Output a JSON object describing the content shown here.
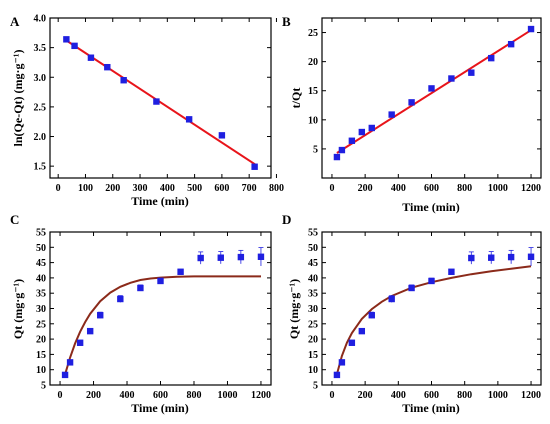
{
  "colors": {
    "marker": "#1f1fe0",
    "linear_fit": "#e8141a",
    "curve_fit": "#8b2a1a",
    "axis": "#000000"
  },
  "chart_data": [
    {
      "panel_label": "A",
      "type": "scatter",
      "xlabel": "Time (min)",
      "ylabel": "ln(Qe-Qt) (mg·g⁻¹)",
      "xlim": [
        -30,
        780
      ],
      "ylim": [
        1.3,
        4.0
      ],
      "xticks": [
        "0",
        "100",
        "200",
        "300",
        "400",
        "500",
        "600",
        "700",
        "800"
      ],
      "xtick_values": [
        0,
        100,
        200,
        300,
        400,
        500,
        600,
        700,
        800
      ],
      "yticks": [
        "1.5",
        "2.0",
        "2.5",
        "3.0",
        "3.5",
        "4.0"
      ],
      "ytick_values": [
        1.5,
        2.0,
        2.5,
        3.0,
        3.5,
        4.0
      ],
      "series": [
        {
          "type": "scatter",
          "x": [
            30,
            60,
            120,
            180,
            240,
            360,
            480,
            600,
            720
          ],
          "y": [
            3.64,
            3.53,
            3.33,
            3.17,
            2.95,
            2.59,
            2.29,
            2.02,
            1.49
          ]
        },
        {
          "type": "line",
          "x": [
            30,
            725
          ],
          "y": [
            3.62,
            1.52
          ]
        }
      ]
    },
    {
      "panel_label": "B",
      "type": "scatter",
      "xlabel": "Time (min)",
      "ylabel": "t/Qt",
      "xlim": [
        -60,
        1260
      ],
      "ylim": [
        0,
        27.5
      ],
      "xticks": [
        "0",
        "200",
        "400",
        "600",
        "800",
        "1000",
        "1200"
      ],
      "xtick_values": [
        0,
        200,
        400,
        600,
        800,
        1000,
        1200
      ],
      "yticks": [
        "5",
        "10",
        "15",
        "20",
        "25"
      ],
      "ytick_values": [
        5,
        10,
        15,
        20,
        25
      ],
      "series": [
        {
          "type": "scatter",
          "x": [
            30,
            60,
            120,
            180,
            240,
            360,
            480,
            600,
            720,
            840,
            960,
            1080,
            1200
          ],
          "y": [
            3.6,
            4.8,
            6.4,
            7.9,
            8.6,
            10.9,
            13.0,
            15.4,
            17.1,
            18.1,
            20.6,
            23.0,
            25.6
          ]
        },
        {
          "type": "line",
          "x": [
            30,
            1200
          ],
          "y": [
            4.3,
            25.4
          ]
        }
      ]
    },
    {
      "panel_label": "C",
      "type": "scatter",
      "xlabel": "Time (min)",
      "ylabel": "Qt (mg·g⁻¹)",
      "xlim": [
        -60,
        1260
      ],
      "ylim": [
        5,
        55
      ],
      "xticks": [
        "0",
        "200",
        "400",
        "600",
        "800",
        "1000",
        "1200"
      ],
      "xtick_values": [
        0,
        200,
        400,
        600,
        800,
        1000,
        1200
      ],
      "yticks": [
        "5",
        "10",
        "15",
        "20",
        "25",
        "30",
        "35",
        "40",
        "45",
        "50",
        "55"
      ],
      "ytick_values": [
        5,
        10,
        15,
        20,
        25,
        30,
        35,
        40,
        45,
        50,
        55
      ],
      "series": [
        {
          "type": "scatter",
          "x": [
            30,
            60,
            120,
            180,
            240,
            360,
            480,
            600,
            720,
            840,
            960,
            1080,
            1200
          ],
          "y": [
            8.3,
            12.4,
            18.8,
            22.6,
            27.8,
            33.1,
            36.7,
            39.0,
            42.0,
            46.5,
            46.6,
            46.8,
            46.9
          ],
          "err": [
            0.6,
            0.7,
            0.8,
            0.8,
            1.0,
            1.1,
            1.0,
            0.9,
            0.8,
            2.0,
            2.0,
            2.2,
            3.0
          ]
        },
        {
          "type": "line",
          "x": [
            30,
            60,
            90,
            120,
            150,
            180,
            240,
            300,
            360,
            420,
            480,
            540,
            600,
            700,
            800,
            900,
            1000,
            1100,
            1200
          ],
          "y": [
            8.5,
            14.0,
            18.6,
            22.4,
            25.6,
            28.3,
            32.4,
            35.2,
            37.1,
            38.4,
            39.3,
            39.8,
            40.1,
            40.4,
            40.5,
            40.5,
            40.5,
            40.5,
            40.5
          ]
        }
      ]
    },
    {
      "panel_label": "D",
      "type": "scatter",
      "xlabel": "Time (min)",
      "ylabel": "Qt (mg·g⁻¹)",
      "xlim": [
        -60,
        1260
      ],
      "ylim": [
        5,
        55
      ],
      "xticks": [
        "0",
        "200",
        "400",
        "600",
        "800",
        "1000",
        "1200"
      ],
      "xtick_values": [
        0,
        200,
        400,
        600,
        800,
        1000,
        1200
      ],
      "yticks": [
        "5",
        "10",
        "15",
        "20",
        "25",
        "30",
        "35",
        "40",
        "45",
        "50",
        "55"
      ],
      "ytick_values": [
        5,
        10,
        15,
        20,
        25,
        30,
        35,
        40,
        45,
        50,
        55
      ],
      "series": [
        {
          "type": "scatter",
          "x": [
            30,
            60,
            120,
            180,
            240,
            360,
            480,
            600,
            720,
            840,
            960,
            1080,
            1200
          ],
          "y": [
            8.3,
            12.4,
            18.8,
            22.6,
            27.8,
            33.1,
            36.7,
            39.0,
            42.0,
            46.5,
            46.6,
            46.8,
            46.9
          ],
          "err": [
            0.6,
            0.7,
            0.8,
            0.8,
            1.0,
            1.1,
            1.0,
            0.9,
            0.8,
            2.0,
            2.0,
            2.2,
            3.0
          ]
        },
        {
          "type": "line",
          "x": [
            30,
            60,
            90,
            120,
            180,
            240,
            300,
            360,
            480,
            600,
            720,
            840,
            960,
            1080,
            1200
          ],
          "y": [
            8.5,
            14.5,
            18.8,
            22.0,
            26.6,
            29.8,
            32.2,
            34.1,
            36.8,
            38.6,
            40.0,
            41.2,
            42.2,
            43.0,
            43.8
          ]
        }
      ]
    }
  ]
}
